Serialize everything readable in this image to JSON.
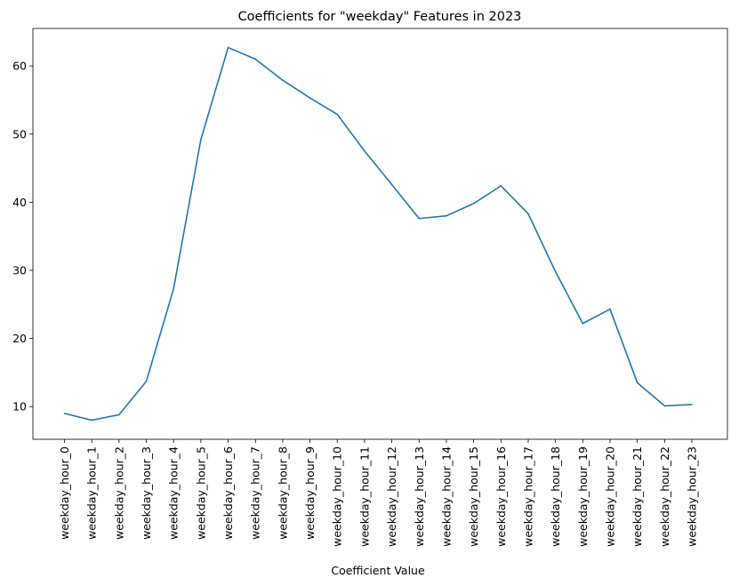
{
  "chart_data": {
    "type": "line",
    "title": "Coefficients for \"weekday\" Features in 2023",
    "xlabel": "Coefficient Value",
    "ylabel": "",
    "categories": [
      "weekday_hour_0",
      "weekday_hour_1",
      "weekday_hour_2",
      "weekday_hour_3",
      "weekday_hour_4",
      "weekday_hour_5",
      "weekday_hour_6",
      "weekday_hour_7",
      "weekday_hour_8",
      "weekday_hour_9",
      "weekday_hour_10",
      "weekday_hour_11",
      "weekday_hour_12",
      "weekday_hour_13",
      "weekday_hour_14",
      "weekday_hour_15",
      "weekday_hour_16",
      "weekday_hour_17",
      "weekday_hour_18",
      "weekday_hour_19",
      "weekday_hour_20",
      "weekday_hour_21",
      "weekday_hour_22",
      "weekday_hour_23"
    ],
    "series": [
      {
        "values": [
          9.0,
          8.0,
          8.8,
          13.7,
          27.3,
          49.2,
          62.7,
          61.0,
          57.9,
          55.3,
          52.9,
          47.5,
          42.6,
          37.6,
          38.0,
          39.8,
          42.4,
          38.3,
          29.8,
          22.2,
          24.3,
          13.5,
          10.1,
          10.3
        ],
        "color": "#1f77b4"
      }
    ],
    "yticks": [
      10,
      20,
      30,
      40,
      50,
      60
    ],
    "ylim": [
      5.2,
      65.5
    ],
    "grid": false,
    "legend": "none"
  }
}
